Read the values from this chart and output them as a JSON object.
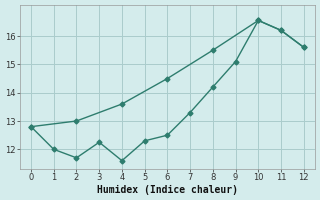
{
  "line1_x": [
    0,
    1,
    2,
    3,
    4,
    5,
    6,
    7,
    8,
    9,
    10,
    11,
    12
  ],
  "line1_y": [
    12.8,
    12.0,
    11.7,
    12.25,
    11.6,
    12.3,
    12.5,
    13.3,
    14.2,
    15.1,
    16.55,
    16.2,
    15.6
  ],
  "line2_x": [
    0,
    2,
    4,
    6,
    8,
    10,
    11,
    12
  ],
  "line2_y": [
    12.8,
    13.0,
    13.6,
    14.5,
    15.5,
    16.55,
    16.2,
    15.6
  ],
  "line_color": "#2e7d6e",
  "bg_color": "#d4ecec",
  "grid_color": "#aacccc",
  "xlabel": "Humidex (Indice chaleur)",
  "xlabel_fontsize": 7,
  "yticks": [
    12,
    13,
    14,
    15,
    16
  ],
  "xticks": [
    0,
    1,
    2,
    3,
    4,
    5,
    6,
    7,
    8,
    9,
    10,
    11,
    12
  ],
  "ylim": [
    11.3,
    17.1
  ],
  "xlim": [
    -0.5,
    12.5
  ],
  "marker": "D",
  "marker_size": 2.5,
  "linewidth": 1.0
}
